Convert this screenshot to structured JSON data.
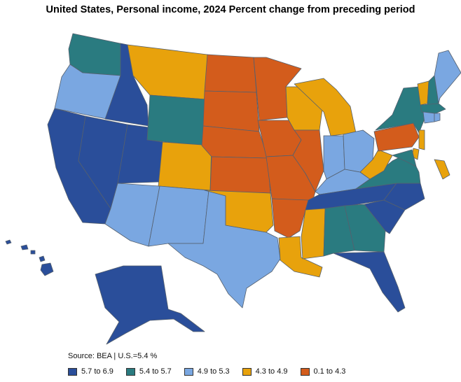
{
  "title": "United States, Personal income, 2024 Percent change from preceding period",
  "source": "Source: BEA | U.S.=5.4 %",
  "colors": {
    "c1": "#2a4e9a",
    "c2": "#2a7b80",
    "c3": "#7aa7e1",
    "c4": "#e8a20c",
    "c5": "#d35c1c"
  },
  "legend": [
    {
      "label": "5.7 to 6.9",
      "color": "#2a4e9a"
    },
    {
      "label": "5.4 to 5.7",
      "color": "#2a7b80"
    },
    {
      "label": "4.9 to 5.3",
      "color": "#7aa7e1"
    },
    {
      "label": "4.3 to 4.9",
      "color": "#e8a20c"
    },
    {
      "label": "0.1 to 4.3",
      "color": "#d35c1c"
    }
  ],
  "states": {
    "WA": "c2",
    "OR": "c3",
    "CA": "c1",
    "ID": "c1",
    "NV": "c1",
    "UT": "c1",
    "AZ": "c3",
    "MT": "c4",
    "WY": "c2",
    "CO": "c4",
    "NM": "c3",
    "TX": "c3",
    "ND": "c5",
    "SD": "c5",
    "NE": "c5",
    "KS": "c5",
    "OK": "c4",
    "MN": "c5",
    "IA": "c5",
    "MO": "c5",
    "AR": "c5",
    "LA": "c4",
    "WI": "c4",
    "IL": "c5",
    "MI": "c4",
    "IN": "c3",
    "OH": "c3",
    "KY": "c3",
    "TN": "c1",
    "MS": "c4",
    "AL": "c2",
    "GA": "c2",
    "FL": "c1",
    "SC": "c1",
    "NC": "c1",
    "VA": "c2",
    "WV": "c4",
    "PA": "c5",
    "NY": "c2",
    "VT": "c4",
    "NH": "c2",
    "ME": "c3",
    "MA": "c2",
    "CT": "c3",
    "RI": "c3",
    "NJ": "c4",
    "DE": "c4",
    "MD": "c2",
    "DC": "c4",
    "AK": "c1",
    "HI": "c1"
  }
}
